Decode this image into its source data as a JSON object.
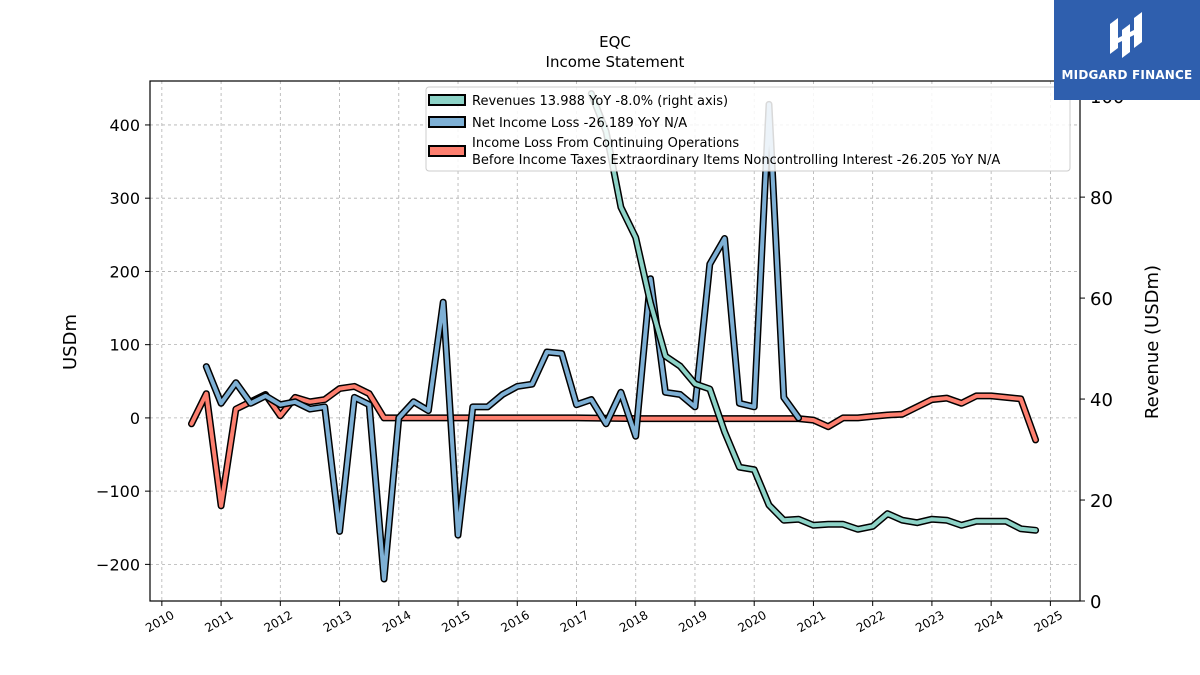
{
  "chart_data": {
    "type": "line",
    "title": "EQC",
    "subtitle": "Income Statement",
    "ylabel_left": "USDm",
    "ylabel_right": "Revenue (USDm)",
    "x_ticks": [
      "2010",
      "2011",
      "2012",
      "2013",
      "2014",
      "2015",
      "2016",
      "2017",
      "2018",
      "2019",
      "2020",
      "2021",
      "2022",
      "2023",
      "2024",
      "2025"
    ],
    "y_left_ticks": [
      "−200",
      "−100",
      "0",
      "100",
      "200",
      "300",
      "400"
    ],
    "y_right_ticks": [
      "0",
      "20",
      "40",
      "60",
      "80",
      "100"
    ],
    "ylim_left": [
      -250,
      460
    ],
    "ylim_right": [
      0,
      103
    ],
    "xlim": [
      2009.8,
      2025.5
    ],
    "grid": true,
    "legend_position": "top-center",
    "series": [
      {
        "name": "Revenues  13.988 YoY -8.0% (right axis)",
        "axis": "right",
        "color": "#8dd3c7",
        "points": [
          [
            2017.25,
            100.5
          ],
          [
            2017.5,
            93
          ],
          [
            2017.75,
            78
          ],
          [
            2018.0,
            72
          ],
          [
            2018.25,
            59
          ],
          [
            2018.5,
            48.5
          ],
          [
            2018.75,
            46.5
          ],
          [
            2019.0,
            43
          ],
          [
            2019.25,
            42
          ],
          [
            2019.5,
            33.5
          ],
          [
            2019.75,
            26.5
          ],
          [
            2020.0,
            26
          ],
          [
            2020.25,
            19
          ],
          [
            2020.5,
            16
          ],
          [
            2020.75,
            16.2
          ],
          [
            2021.0,
            15
          ],
          [
            2021.25,
            15.2
          ],
          [
            2021.5,
            15.2
          ],
          [
            2021.75,
            14.2
          ],
          [
            2022.0,
            14.8
          ],
          [
            2022.25,
            17.3
          ],
          [
            2022.5,
            16
          ],
          [
            2022.75,
            15.5
          ],
          [
            2023.0,
            16.2
          ],
          [
            2023.25,
            16
          ],
          [
            2023.5,
            15
          ],
          [
            2023.75,
            15.8
          ],
          [
            2024.0,
            15.8
          ],
          [
            2024.25,
            15.8
          ],
          [
            2024.5,
            14.3
          ],
          [
            2024.75,
            14
          ]
        ]
      },
      {
        "name": "Net Income Loss  -26.189 YoY N/A",
        "axis": "left",
        "color": "#7eb0d5",
        "points": [
          [
            2010.75,
            70
          ],
          [
            2011.0,
            20
          ],
          [
            2011.25,
            48
          ],
          [
            2011.5,
            20
          ],
          [
            2011.75,
            30
          ],
          [
            2012.0,
            18
          ],
          [
            2012.25,
            22
          ],
          [
            2012.5,
            12
          ],
          [
            2012.75,
            15
          ],
          [
            2013.0,
            -155
          ],
          [
            2013.25,
            28
          ],
          [
            2013.5,
            18
          ],
          [
            2013.75,
            -220
          ],
          [
            2014.0,
            0
          ],
          [
            2014.25,
            22
          ],
          [
            2014.5,
            10
          ],
          [
            2014.75,
            158
          ],
          [
            2015.0,
            -160
          ],
          [
            2015.25,
            15
          ],
          [
            2015.5,
            15
          ],
          [
            2015.75,
            32
          ],
          [
            2016.0,
            43
          ],
          [
            2016.25,
            46
          ],
          [
            2016.5,
            90
          ],
          [
            2016.75,
            88
          ],
          [
            2017.0,
            18
          ],
          [
            2017.25,
            25
          ],
          [
            2017.5,
            -8
          ],
          [
            2017.75,
            35
          ],
          [
            2018.0,
            -25
          ],
          [
            2018.25,
            190
          ],
          [
            2018.5,
            35
          ],
          [
            2018.75,
            32
          ],
          [
            2019.0,
            15
          ],
          [
            2019.25,
            210
          ],
          [
            2019.5,
            245
          ],
          [
            2019.75,
            20
          ],
          [
            2020.0,
            15
          ],
          [
            2020.25,
            428
          ],
          [
            2020.5,
            28
          ],
          [
            2020.75,
            0
          ]
        ]
      },
      {
        "name": "Income Loss From Continuing Operations\nBefore Income Taxes Extraordinary Items Noncontrolling Interest  -26.205 YoY N/A",
        "axis": "left",
        "color": "#fd7f6f",
        "points": [
          [
            2010.5,
            -8
          ],
          [
            2010.75,
            33
          ],
          [
            2011.0,
            -120
          ],
          [
            2011.25,
            12
          ],
          [
            2011.5,
            22
          ],
          [
            2011.75,
            32
          ],
          [
            2012.0,
            3
          ],
          [
            2012.25,
            28
          ],
          [
            2012.5,
            22
          ],
          [
            2012.75,
            25
          ],
          [
            2013.0,
            40
          ],
          [
            2013.25,
            43
          ],
          [
            2013.5,
            33
          ],
          [
            2013.75,
            0
          ],
          [
            2014.0,
            0
          ],
          [
            2014.5,
            0
          ],
          [
            2015.0,
            0
          ],
          [
            2016.0,
            0
          ],
          [
            2017.0,
            0
          ],
          [
            2018.0,
            -1
          ],
          [
            2019.0,
            -1
          ],
          [
            2020.0,
            -1
          ],
          [
            2020.75,
            -1
          ],
          [
            2021.0,
            -3
          ],
          [
            2021.25,
            -12
          ],
          [
            2021.5,
            0
          ],
          [
            2021.75,
            0
          ],
          [
            2022.0,
            2
          ],
          [
            2022.25,
            4
          ],
          [
            2022.5,
            5
          ],
          [
            2022.75,
            15
          ],
          [
            2023.0,
            25
          ],
          [
            2023.25,
            27
          ],
          [
            2023.5,
            20
          ],
          [
            2023.75,
            30
          ],
          [
            2024.0,
            30
          ],
          [
            2024.25,
            28
          ],
          [
            2024.5,
            26
          ],
          [
            2024.75,
            -30
          ]
        ]
      }
    ]
  },
  "logo": {
    "text": "MIDGARD FINANCE",
    "color": "#2f5fae"
  }
}
